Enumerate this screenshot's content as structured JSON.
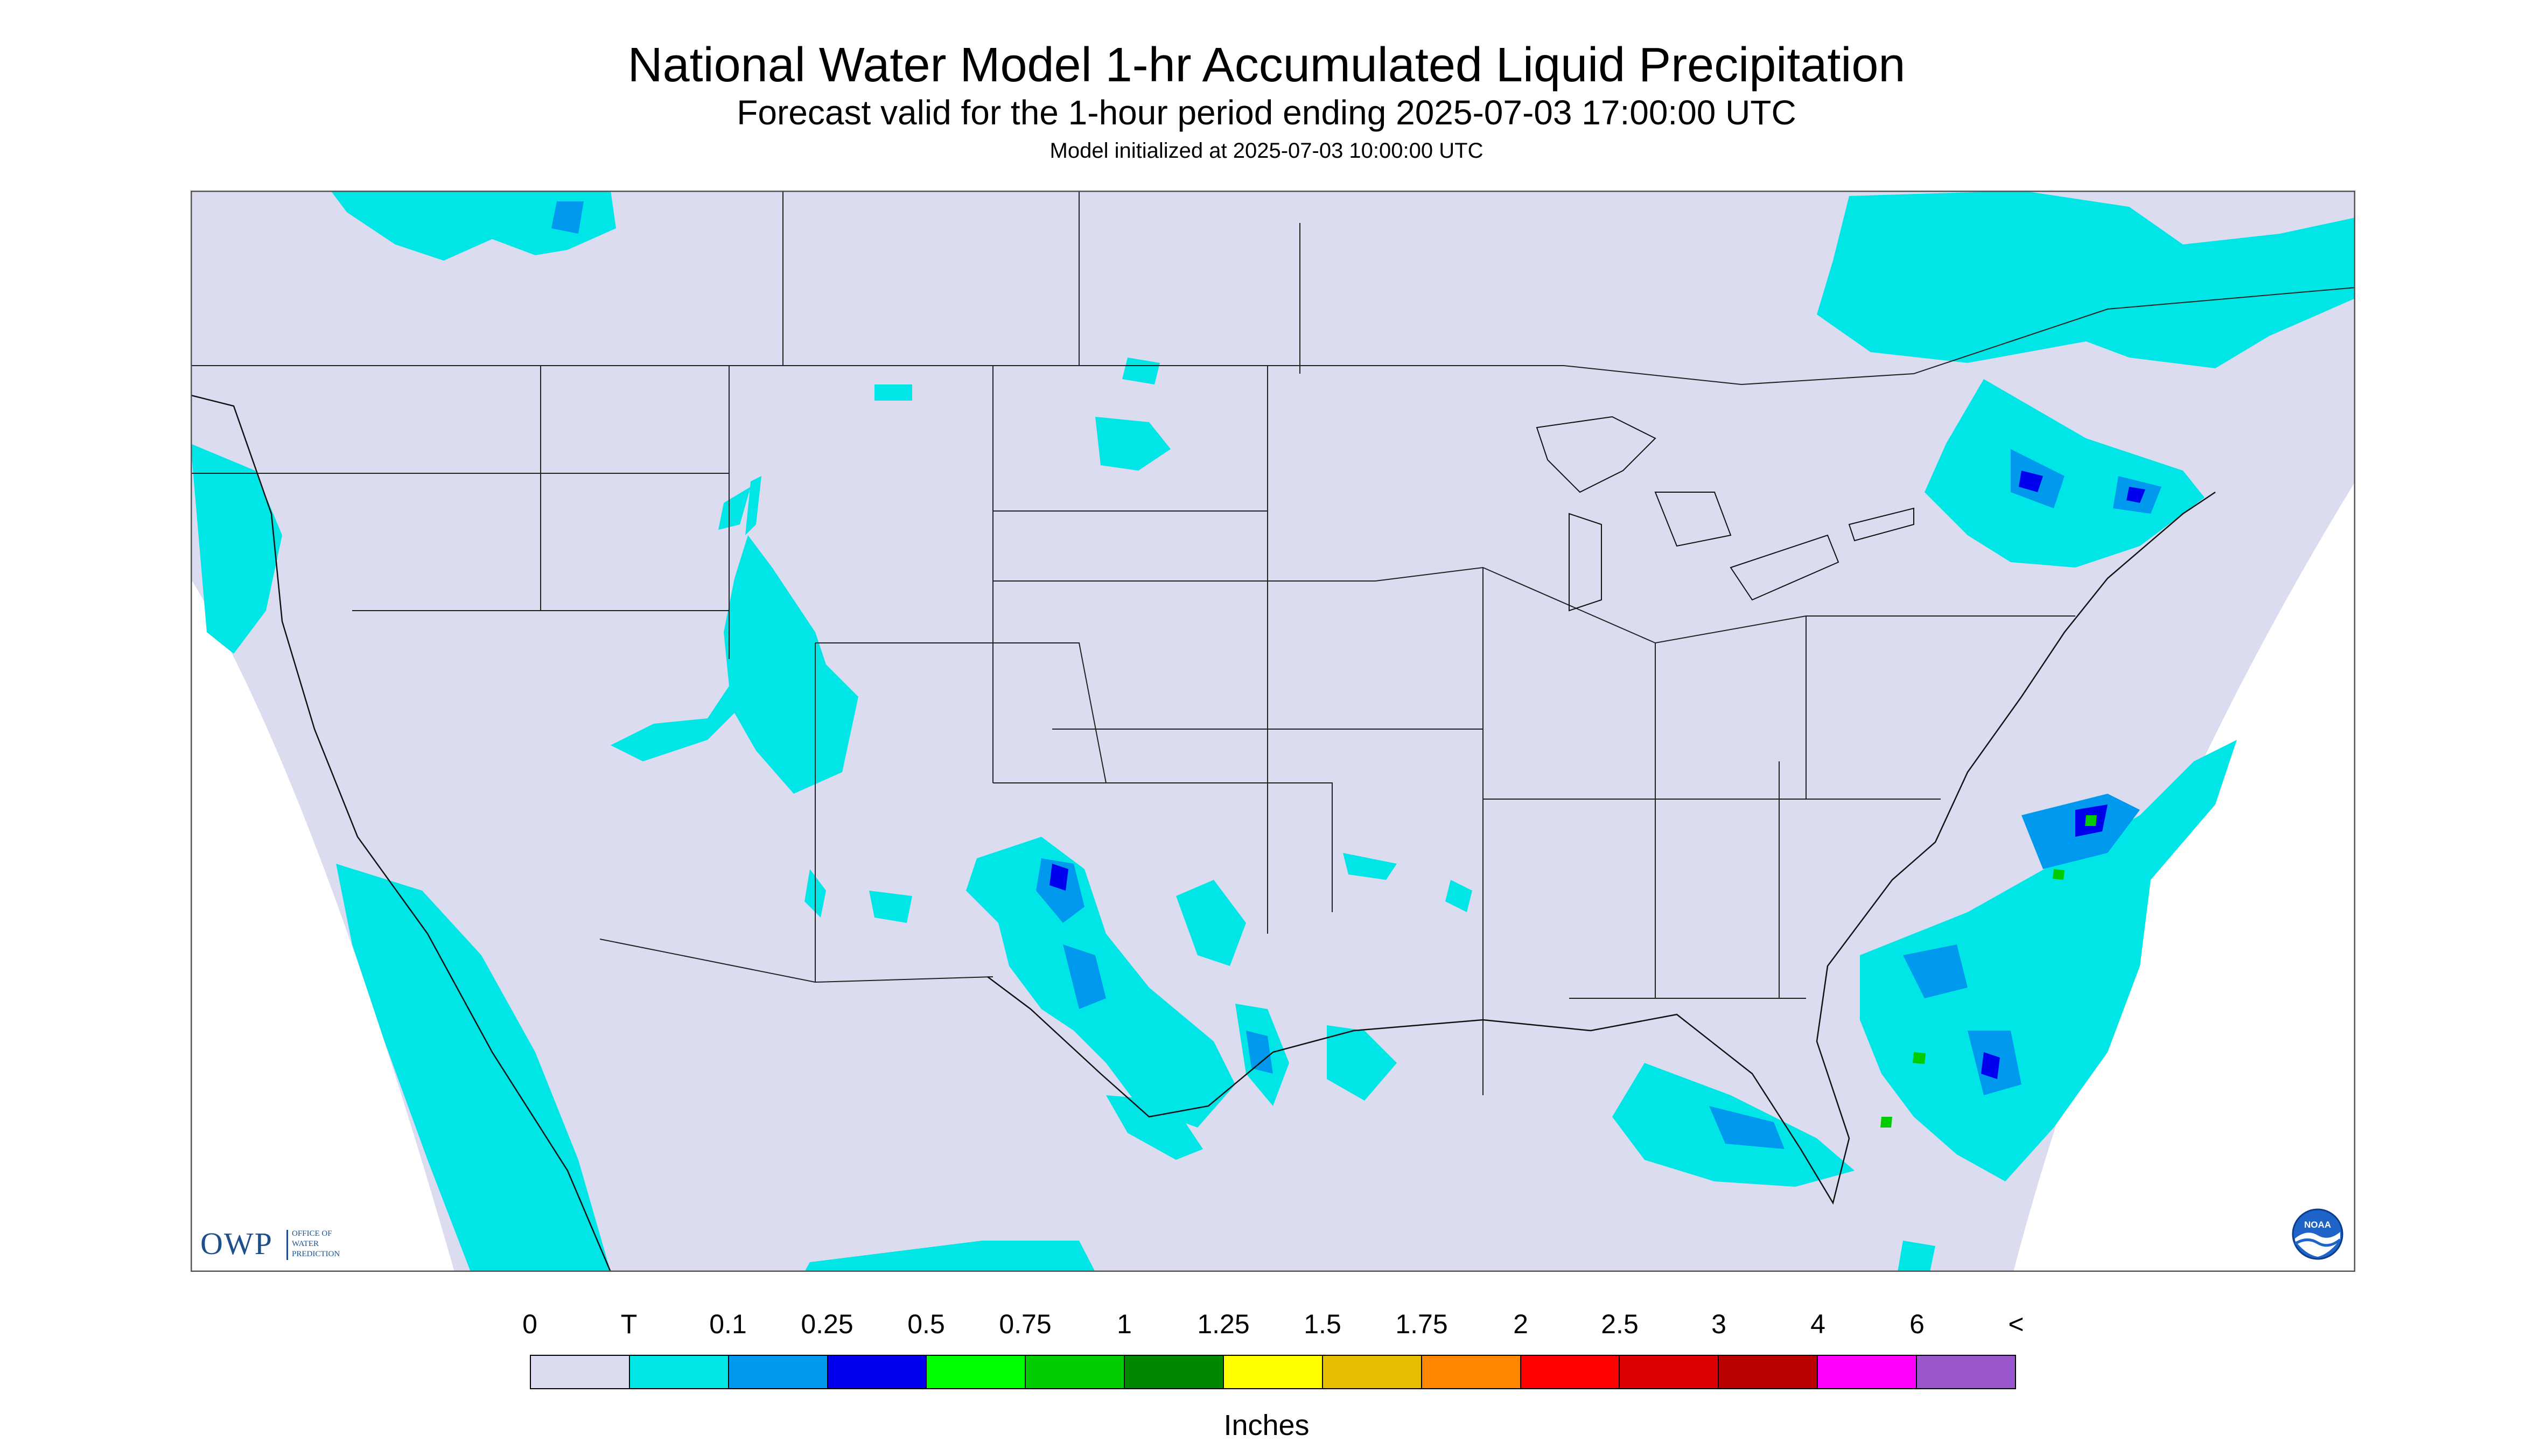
{
  "header": {
    "title": "National Water Model 1-hr Accumulated Liquid Precipitation",
    "subtitle": "Forecast valid for the 1-hour period ending 2025-07-03 17:00:00 UTC",
    "init": "Model initialized at 2025-07-03 10:00:00 UTC"
  },
  "logos": {
    "owp_big": "OWP",
    "owp_lines": [
      "OFFICE OF",
      "WATER",
      "PREDICTION"
    ],
    "noaa": "NOAA"
  },
  "legend": {
    "labels": [
      "0",
      "T",
      "0.1",
      "0.25",
      "0.5",
      "0.75",
      "1",
      "1.25",
      "1.5",
      "1.75",
      "2",
      "2.5",
      "3",
      "4",
      "6",
      "<"
    ],
    "colors": [
      "#dcdcf0",
      "#00e6e6",
      "#0099ee",
      "#0000ee",
      "#00ff00",
      "#00cc00",
      "#008800",
      "#ffff00",
      "#e6c000",
      "#ff8800",
      "#ff0000",
      "#dd0000",
      "#bb0000",
      "#ff00ff",
      "#9955cc"
    ],
    "units": "Inches"
  },
  "map": {
    "background": "#dcdcf0",
    "trace_color": "#00e6e6",
    "light_color": "#0099ee",
    "heavy_color": "#0000ee",
    "green_color": "#00cc00"
  }
}
